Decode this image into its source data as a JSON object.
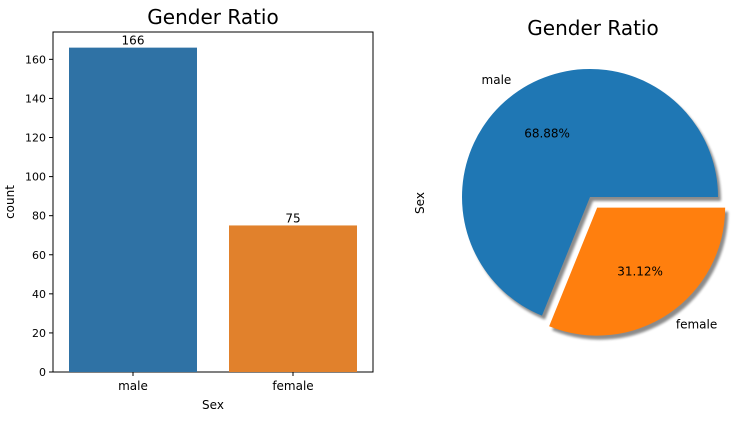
{
  "chart_data": [
    {
      "type": "bar",
      "title": "Gender Ratio",
      "xlabel": "Sex",
      "ylabel": "count",
      "categories": [
        "male",
        "female"
      ],
      "values": [
        166,
        75
      ],
      "data_labels": [
        "166",
        "75"
      ],
      "colors": [
        "#2f72a5",
        "#e1812c"
      ],
      "ylim": [
        0,
        174
      ],
      "yticks": [
        0,
        20,
        40,
        60,
        80,
        100,
        120,
        140,
        160
      ],
      "grid": false
    },
    {
      "type": "pie",
      "title": "Gender Ratio",
      "ylabel": "Sex",
      "labels": [
        "male",
        "female"
      ],
      "values": [
        68.88,
        31.12
      ],
      "pct_labels": [
        "68.88%",
        "31.12%"
      ],
      "explode": [
        0,
        0.1
      ],
      "shadow": true,
      "colors": [
        "#1f77b4",
        "#ff7f0e"
      ]
    }
  ]
}
